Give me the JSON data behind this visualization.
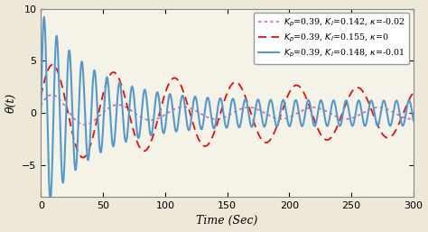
{
  "title": "",
  "xlabel": "Time (Sec)",
  "ylabel": "θ(t)",
  "xlim": [
    0,
    300
  ],
  "ylim": [
    -8,
    10
  ],
  "yticks": [
    -5,
    0,
    5,
    10
  ],
  "xticks": [
    0,
    50,
    100,
    150,
    200,
    250,
    300
  ],
  "bg_fig": "#ede8d8",
  "bg_ax": "#f5f2e8",
  "legend": [
    {
      "label": "$K_p$=0.39, $K_I$=0.155, $\\kappa$=0",
      "color": "#dd1111",
      "linestyle": "--",
      "linewidth": 1.3
    },
    {
      "label": "$K_p$=0.39, $K_I$=0.148, $\\kappa$=-0.01",
      "color": "#5599cc",
      "linestyle": "-",
      "linewidth": 1.5
    },
    {
      "label": "$K_p$=0.39, $K_I$=0.142, $\\kappa$=-0.02",
      "color": "#cc66bb",
      "linestyle": ":",
      "linewidth": 1.2
    }
  ],
  "s1_amp0": 3.0,
  "s1_decay": 0.006,
  "s1_resid": 1.8,
  "s1_freq": 0.128,
  "s1_phase": 0.35,
  "s2_amp0": 8.5,
  "s2_decay": 0.025,
  "s2_resid": 1.2,
  "s2_freq": 0.62,
  "s2_phase": 0.0,
  "s3_amp0": 1.6,
  "s3_decay": 0.03,
  "s3_resid": 0.55,
  "s3_freq": 0.12,
  "s3_phase": 0.35
}
